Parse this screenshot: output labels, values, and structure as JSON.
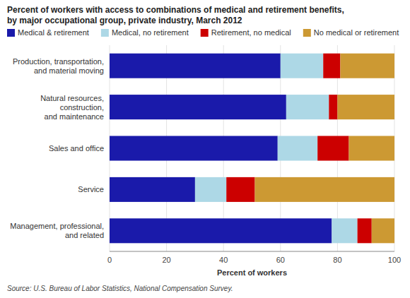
{
  "chart_data": {
    "type": "bar",
    "orientation": "horizontal",
    "stacked": true,
    "title": "Percent of workers with access to combinations of medical and retirement benefits,\nby major occupational group, private industry, March 2012",
    "categories": [
      "Production, transportation,\nand material moving",
      "Natural resources,\nconstruction,\nand maintenance",
      "Sales and office",
      "Service",
      "Management, professional,\nand related"
    ],
    "series": [
      {
        "name": "Medical & retirement",
        "color": "#1a1aaa",
        "values": [
          60,
          62,
          59,
          30,
          78
        ]
      },
      {
        "name": "Medical, no retirement",
        "color": "#add8e6",
        "values": [
          15,
          15,
          14,
          11,
          9
        ]
      },
      {
        "name": "Retirement, no medical",
        "color": "#cc0000",
        "values": [
          6,
          3,
          11,
          10,
          5
        ]
      },
      {
        "name": "No medical or retirement",
        "color": "#cc9933",
        "values": [
          19,
          20,
          16,
          49,
          8
        ]
      }
    ],
    "xlabel": "Percent of workers",
    "xlim": [
      0,
      100
    ],
    "xticks": [
      0,
      20,
      40,
      60,
      80,
      100
    ],
    "grid": true,
    "legend": "top-left",
    "source": "Source: U.S. Bureau of Labor Statistics, National Compensation Survey."
  }
}
